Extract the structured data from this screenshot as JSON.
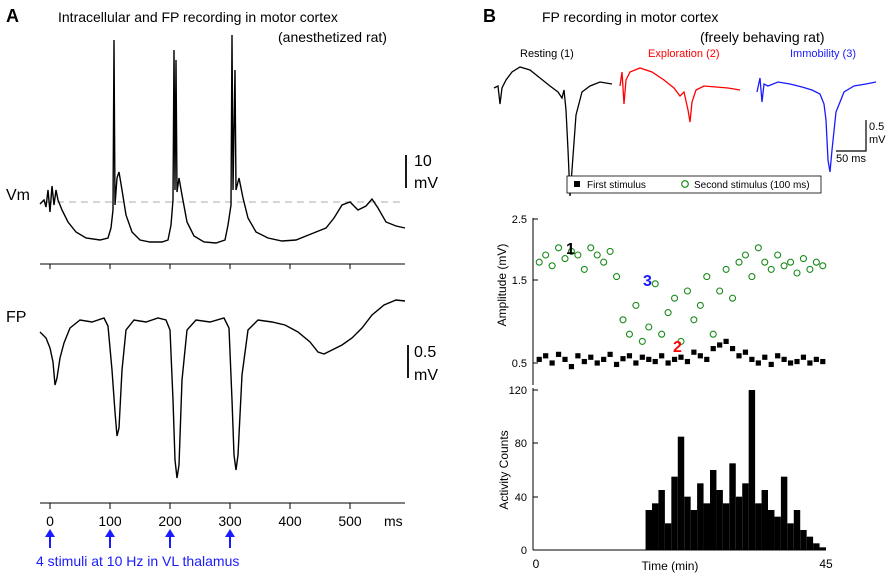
{
  "panel_a": {
    "letter": "A",
    "title": "Intracellular and FP recording in motor cortex",
    "subtitle": "(anesthetized rat)",
    "vm_label": "Vm",
    "fp_label": "FP",
    "vm_scale_value": "10",
    "vm_scale_unit": "mV",
    "fp_scale_value": "0.5",
    "fp_scale_unit": "mV",
    "time_ticks": [
      "0",
      "100",
      "200",
      "300",
      "400",
      "500"
    ],
    "time_unit": "ms",
    "stimulus_note": "4 stimuli at 10 Hz in VL thalamus",
    "stimulus_times_ms": [
      0,
      100,
      200,
      300
    ],
    "stimulus_color": "#1a1aff"
  },
  "panel_b": {
    "letter": "B",
    "title": "FP recording in motor cortex",
    "subtitle": "(freely behaving rat)",
    "traces": [
      {
        "label": "Resting (1)",
        "color": "#000000"
      },
      {
        "label": "Exploration (2)",
        "color": "#ff0000"
      },
      {
        "label": "Immobility (3)",
        "color": "#1a1aff"
      }
    ],
    "trace_scale_value": "0.5",
    "trace_scale_unit": "mV",
    "trace_scale_time": "50 ms",
    "scatter_ylabel": "Amplitude (mV)",
    "scatter_yticks": [
      "0.5",
      "1.5",
      "2.5"
    ],
    "legend_first": "First stimulus",
    "legend_second": "Second stimulus (100 ms)",
    "state_markers": [
      {
        "text": "1",
        "color": "#000000"
      },
      {
        "text": "2",
        "color": "#ff0000"
      },
      {
        "text": "3",
        "color": "#1a1aff"
      }
    ],
    "activity_ylabel": "Activity Counts",
    "activity_yticks": [
      "0",
      "40",
      "80",
      "120"
    ],
    "time_xlabel": "Time (min)",
    "time_xticks": [
      "0",
      "45"
    ],
    "first_color": "#000000",
    "second_color": "#1a8a1a"
  },
  "chart_data": [
    {
      "type": "scatter",
      "title": "",
      "xlabel": "Time (min)",
      "ylabel": "Amplitude (mV)",
      "xlim": [
        0,
        45
      ],
      "ylim": [
        0.2,
        2.5
      ],
      "series": [
        {
          "name": "First stimulus",
          "marker": "square",
          "x": [
            0.5,
            1.5,
            2.5,
            3.5,
            4.5,
            5.5,
            6.5,
            7.5,
            8.5,
            9.5,
            10.5,
            11.5,
            12.5,
            13.5,
            14.5,
            15.5,
            16.5,
            17.5,
            18.5,
            19.5,
            20.5,
            21.5,
            22.5,
            23.5,
            24.5,
            25.5,
            26.5,
            27.5,
            28.5,
            29.5,
            30.5,
            31.5,
            32.5,
            33.5,
            34.5,
            35.5,
            36.5,
            37.5,
            38.5,
            39.5,
            40.5,
            41.5,
            42.5,
            43.5,
            44.5
          ],
          "y": [
            0.55,
            0.6,
            0.5,
            0.62,
            0.55,
            0.45,
            0.6,
            0.52,
            0.58,
            0.5,
            0.55,
            0.62,
            0.48,
            0.56,
            0.6,
            0.5,
            0.58,
            0.55,
            0.52,
            0.6,
            0.5,
            0.55,
            0.58,
            0.52,
            0.65,
            0.6,
            0.55,
            0.7,
            0.75,
            0.8,
            0.7,
            0.6,
            0.65,
            0.55,
            0.5,
            0.58,
            0.48,
            0.6,
            0.55,
            0.5,
            0.52,
            0.58,
            0.5,
            0.55,
            0.52
          ]
        },
        {
          "name": "Second stimulus (100 ms)",
          "marker": "circle",
          "x": [
            0.5,
            1.5,
            2.5,
            3.5,
            4.5,
            5.5,
            6.5,
            7.5,
            8.5,
            9.5,
            10.5,
            11.5,
            12.5,
            13.5,
            14.5,
            15.5,
            16.5,
            17.5,
            18.5,
            19.5,
            20.5,
            21.5,
            22.5,
            23.5,
            24.5,
            25.5,
            26.5,
            27.5,
            28.5,
            29.5,
            30.5,
            31.5,
            32.5,
            33.5,
            34.5,
            35.5,
            36.5,
            37.5,
            38.5,
            39.5,
            40.5,
            41.5,
            42.5,
            43.5,
            44.5
          ],
          "y": [
            1.9,
            2.0,
            1.85,
            2.1,
            1.95,
            2.05,
            2.0,
            1.8,
            2.1,
            2.0,
            1.9,
            2.05,
            1.7,
            1.1,
            0.9,
            1.3,
            0.8,
            1.0,
            1.6,
            0.9,
            1.2,
            1.4,
            0.8,
            1.5,
            1.1,
            1.3,
            1.7,
            0.9,
            1.5,
            1.8,
            1.4,
            1.9,
            2.0,
            1.7,
            2.1,
            1.9,
            1.8,
            2.0,
            1.85,
            1.9,
            1.75,
            1.95,
            1.8,
            1.9,
            1.85
          ]
        }
      ]
    },
    {
      "type": "bar",
      "title": "",
      "xlabel": "Time (min)",
      "ylabel": "Activity Counts",
      "xlim": [
        0,
        45
      ],
      "ylim": [
        0,
        120
      ],
      "x": [
        17.5,
        18.5,
        19.5,
        20.5,
        21.5,
        22.5,
        23.5,
        24.5,
        25.5,
        26.5,
        27.5,
        28.5,
        29.5,
        30.5,
        31.5,
        32.5,
        33.5,
        34.5,
        35.5,
        36.5,
        37.5,
        38.5,
        39.5,
        40.5,
        41.5,
        42.5,
        43.5,
        44.5
      ],
      "values": [
        30,
        35,
        45,
        20,
        55,
        85,
        40,
        30,
        50,
        35,
        60,
        45,
        35,
        65,
        40,
        50,
        120,
        35,
        45,
        30,
        25,
        55,
        20,
        30,
        15,
        10,
        5,
        2
      ]
    }
  ]
}
